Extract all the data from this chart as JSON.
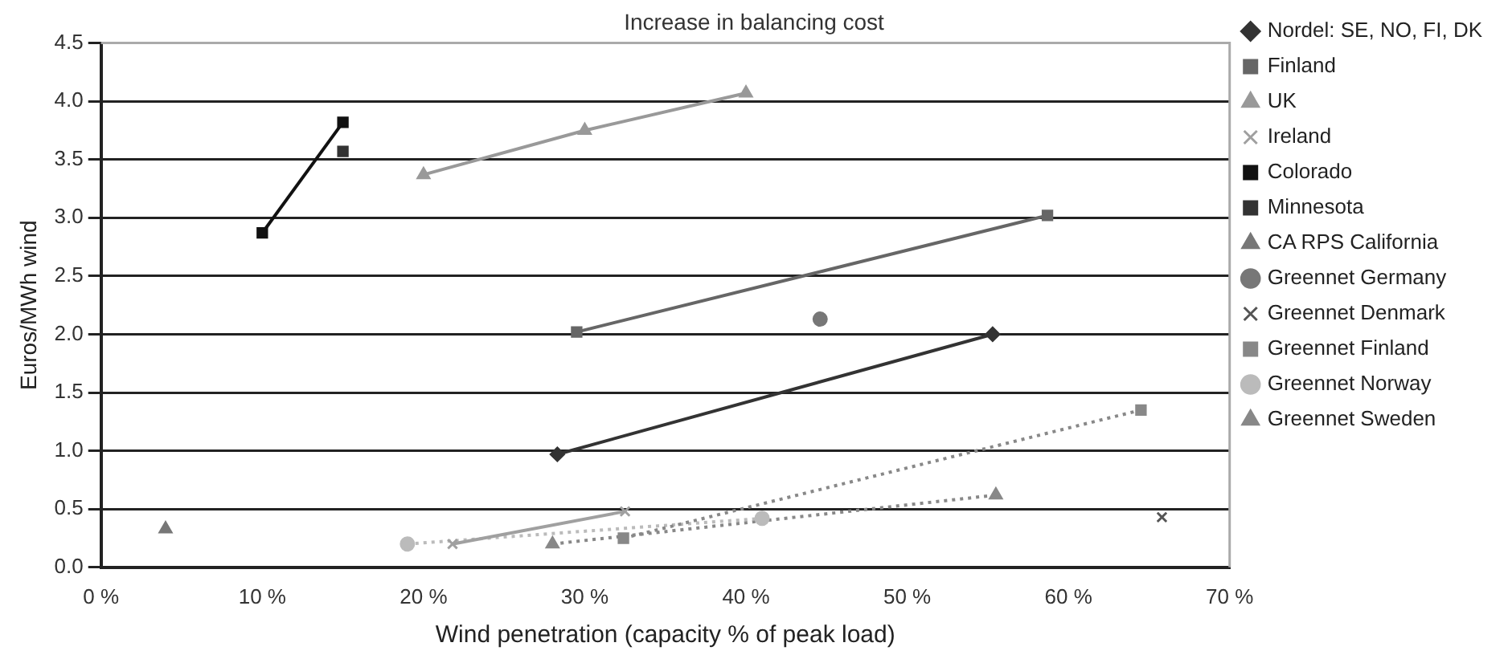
{
  "chart_data": {
    "type": "line",
    "title": "Increase in balancing cost",
    "xlabel": "Wind penetration (capacity % of peak load)",
    "ylabel": "Euros/MWh wind",
    "xlim": [
      0,
      70
    ],
    "xticks": [
      {
        "value": 0,
        "label": "0 %"
      },
      {
        "value": 10,
        "label": "10 %"
      },
      {
        "value": 20,
        "label": "20 %"
      },
      {
        "value": 30,
        "label": "30 %"
      },
      {
        "value": 40,
        "label": "40 %"
      },
      {
        "value": 50,
        "label": "50 %"
      },
      {
        "value": 60,
        "label": "60 %"
      },
      {
        "value": 70,
        "label": "70 %"
      }
    ],
    "ylim": [
      0,
      4.5
    ],
    "yticks": [
      {
        "value": 0,
        "label": "0.0"
      },
      {
        "value": 0.5,
        "label": "0.5"
      },
      {
        "value": 1,
        "label": "1.0"
      },
      {
        "value": 1.5,
        "label": "1.5"
      },
      {
        "value": 2,
        "label": "2.0"
      },
      {
        "value": 2.5,
        "label": "2.5"
      },
      {
        "value": 3,
        "label": "3.0"
      },
      {
        "value": 3.5,
        "label": "3.5"
      },
      {
        "value": 4,
        "label": "4.0"
      },
      {
        "value": 4.5,
        "label": "4.5"
      }
    ],
    "grid": "y",
    "legend": "right",
    "series": [
      {
        "name": "Nordel: SE, NO, FI, DK",
        "type": "line",
        "color": "#333333",
        "marker": "diamond",
        "line_style": "solid",
        "x": [
          28.3,
          55.3
        ],
        "values": [
          0.97,
          2.0
        ]
      },
      {
        "name": "Finland",
        "type": "line",
        "color": "#666666",
        "marker": "square",
        "line_style": "solid",
        "x": [
          29.5,
          58.7
        ],
        "values": [
          2.02,
          3.02
        ]
      },
      {
        "name": "UK",
        "type": "line",
        "color": "#999999",
        "marker": "triangle",
        "line_style": "solid",
        "x": [
          20,
          30,
          40
        ],
        "values": [
          3.37,
          3.75,
          4.07
        ]
      },
      {
        "name": "Ireland",
        "type": "line",
        "color": "#a0a0a0",
        "marker": "cross",
        "line_style": "solid",
        "x": [
          21.8,
          32.5
        ],
        "values": [
          0.2,
          0.48
        ]
      },
      {
        "name": "Colorado",
        "type": "line",
        "color": "#111111",
        "marker": "square",
        "line_style": "solid",
        "x": [
          10,
          15
        ],
        "values": [
          2.87,
          3.82
        ]
      },
      {
        "name": "Minnesota",
        "type": "scatter",
        "color": "#333333",
        "marker": "square",
        "x": [
          15
        ],
        "values": [
          3.57
        ]
      },
      {
        "name": "CA RPS California",
        "type": "scatter",
        "color": "#777777",
        "marker": "triangle",
        "x": [
          4
        ],
        "values": [
          0.33
        ]
      },
      {
        "name": "Greennet Germany",
        "type": "scatter",
        "color": "#777777",
        "marker": "circle",
        "x": [
          44.6
        ],
        "values": [
          2.13
        ]
      },
      {
        "name": "Greennet Denmark",
        "type": "scatter",
        "color": "#555555",
        "marker": "cross",
        "x": [
          65.8
        ],
        "values": [
          0.43
        ]
      },
      {
        "name": "Greennet Finland",
        "type": "line",
        "color": "#888888",
        "marker": "square",
        "line_style": "dotted",
        "x": [
          32.4,
          64.5
        ],
        "values": [
          0.25,
          1.35
        ]
      },
      {
        "name": "Greennet Norway",
        "type": "line",
        "color": "#bbbbbb",
        "marker": "circle",
        "line_style": "dotted",
        "x": [
          19,
          41
        ],
        "values": [
          0.2,
          0.42
        ]
      },
      {
        "name": "Greennet Sweden",
        "type": "line",
        "color": "#888888",
        "marker": "triangle",
        "line_style": "dotted",
        "x": [
          28,
          55.5
        ],
        "values": [
          0.2,
          0.62
        ]
      }
    ]
  }
}
